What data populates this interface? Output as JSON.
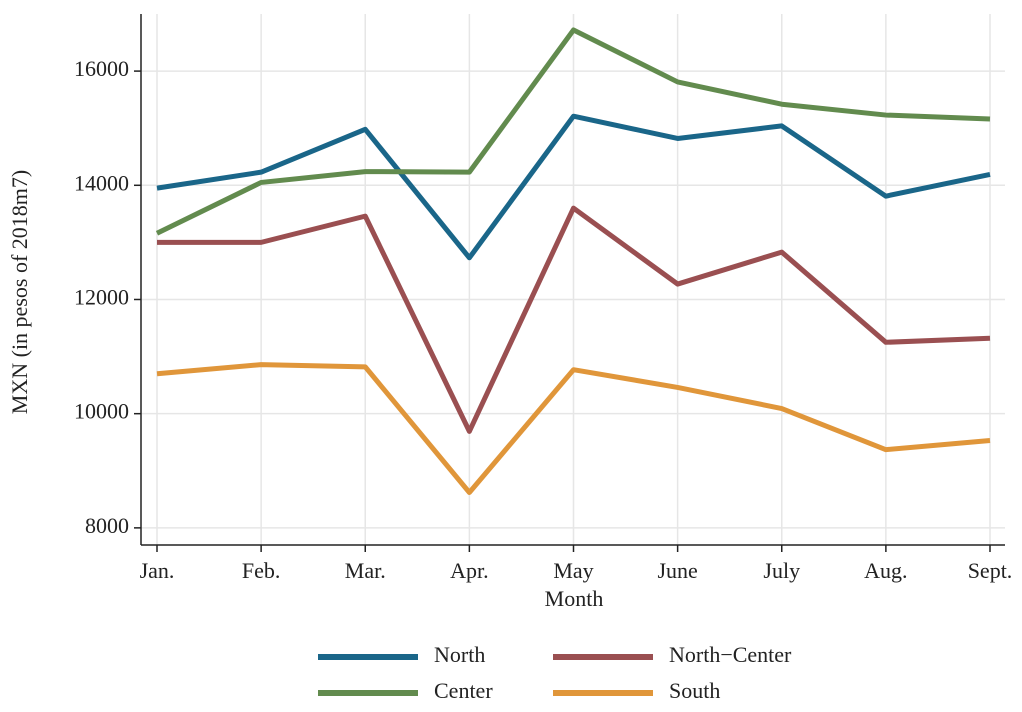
{
  "chart_data": {
    "type": "line",
    "xlabel": "Month",
    "ylabel": "MXN (in pesos of 2018m7)",
    "categories": [
      "Jan.",
      "Feb.",
      "Mar.",
      "Apr.",
      "May",
      "June",
      "July",
      "Aug.",
      "Sept."
    ],
    "series": [
      {
        "name": "North",
        "color": "#1a6689",
        "values": [
          13950,
          14230,
          14980,
          12730,
          15210,
          14820,
          15040,
          13810,
          14190
        ]
      },
      {
        "name": "North−Center",
        "color": "#9a4f51",
        "values": [
          13000,
          13000,
          13460,
          9690,
          13600,
          12270,
          12830,
          11250,
          11320
        ]
      },
      {
        "name": "Center",
        "color": "#628b4e",
        "values": [
          13160,
          14050,
          14240,
          14230,
          16720,
          15810,
          15420,
          15230,
          15160
        ]
      },
      {
        "name": "South",
        "color": "#e0963a",
        "values": [
          10700,
          10860,
          10820,
          8620,
          10770,
          10460,
          10090,
          9370,
          9530
        ]
      }
    ],
    "ylim": [
      7700,
      17000
    ],
    "yticks": [
      8000,
      10000,
      12000,
      14000,
      16000
    ],
    "grid": true,
    "legend": "bottom"
  }
}
